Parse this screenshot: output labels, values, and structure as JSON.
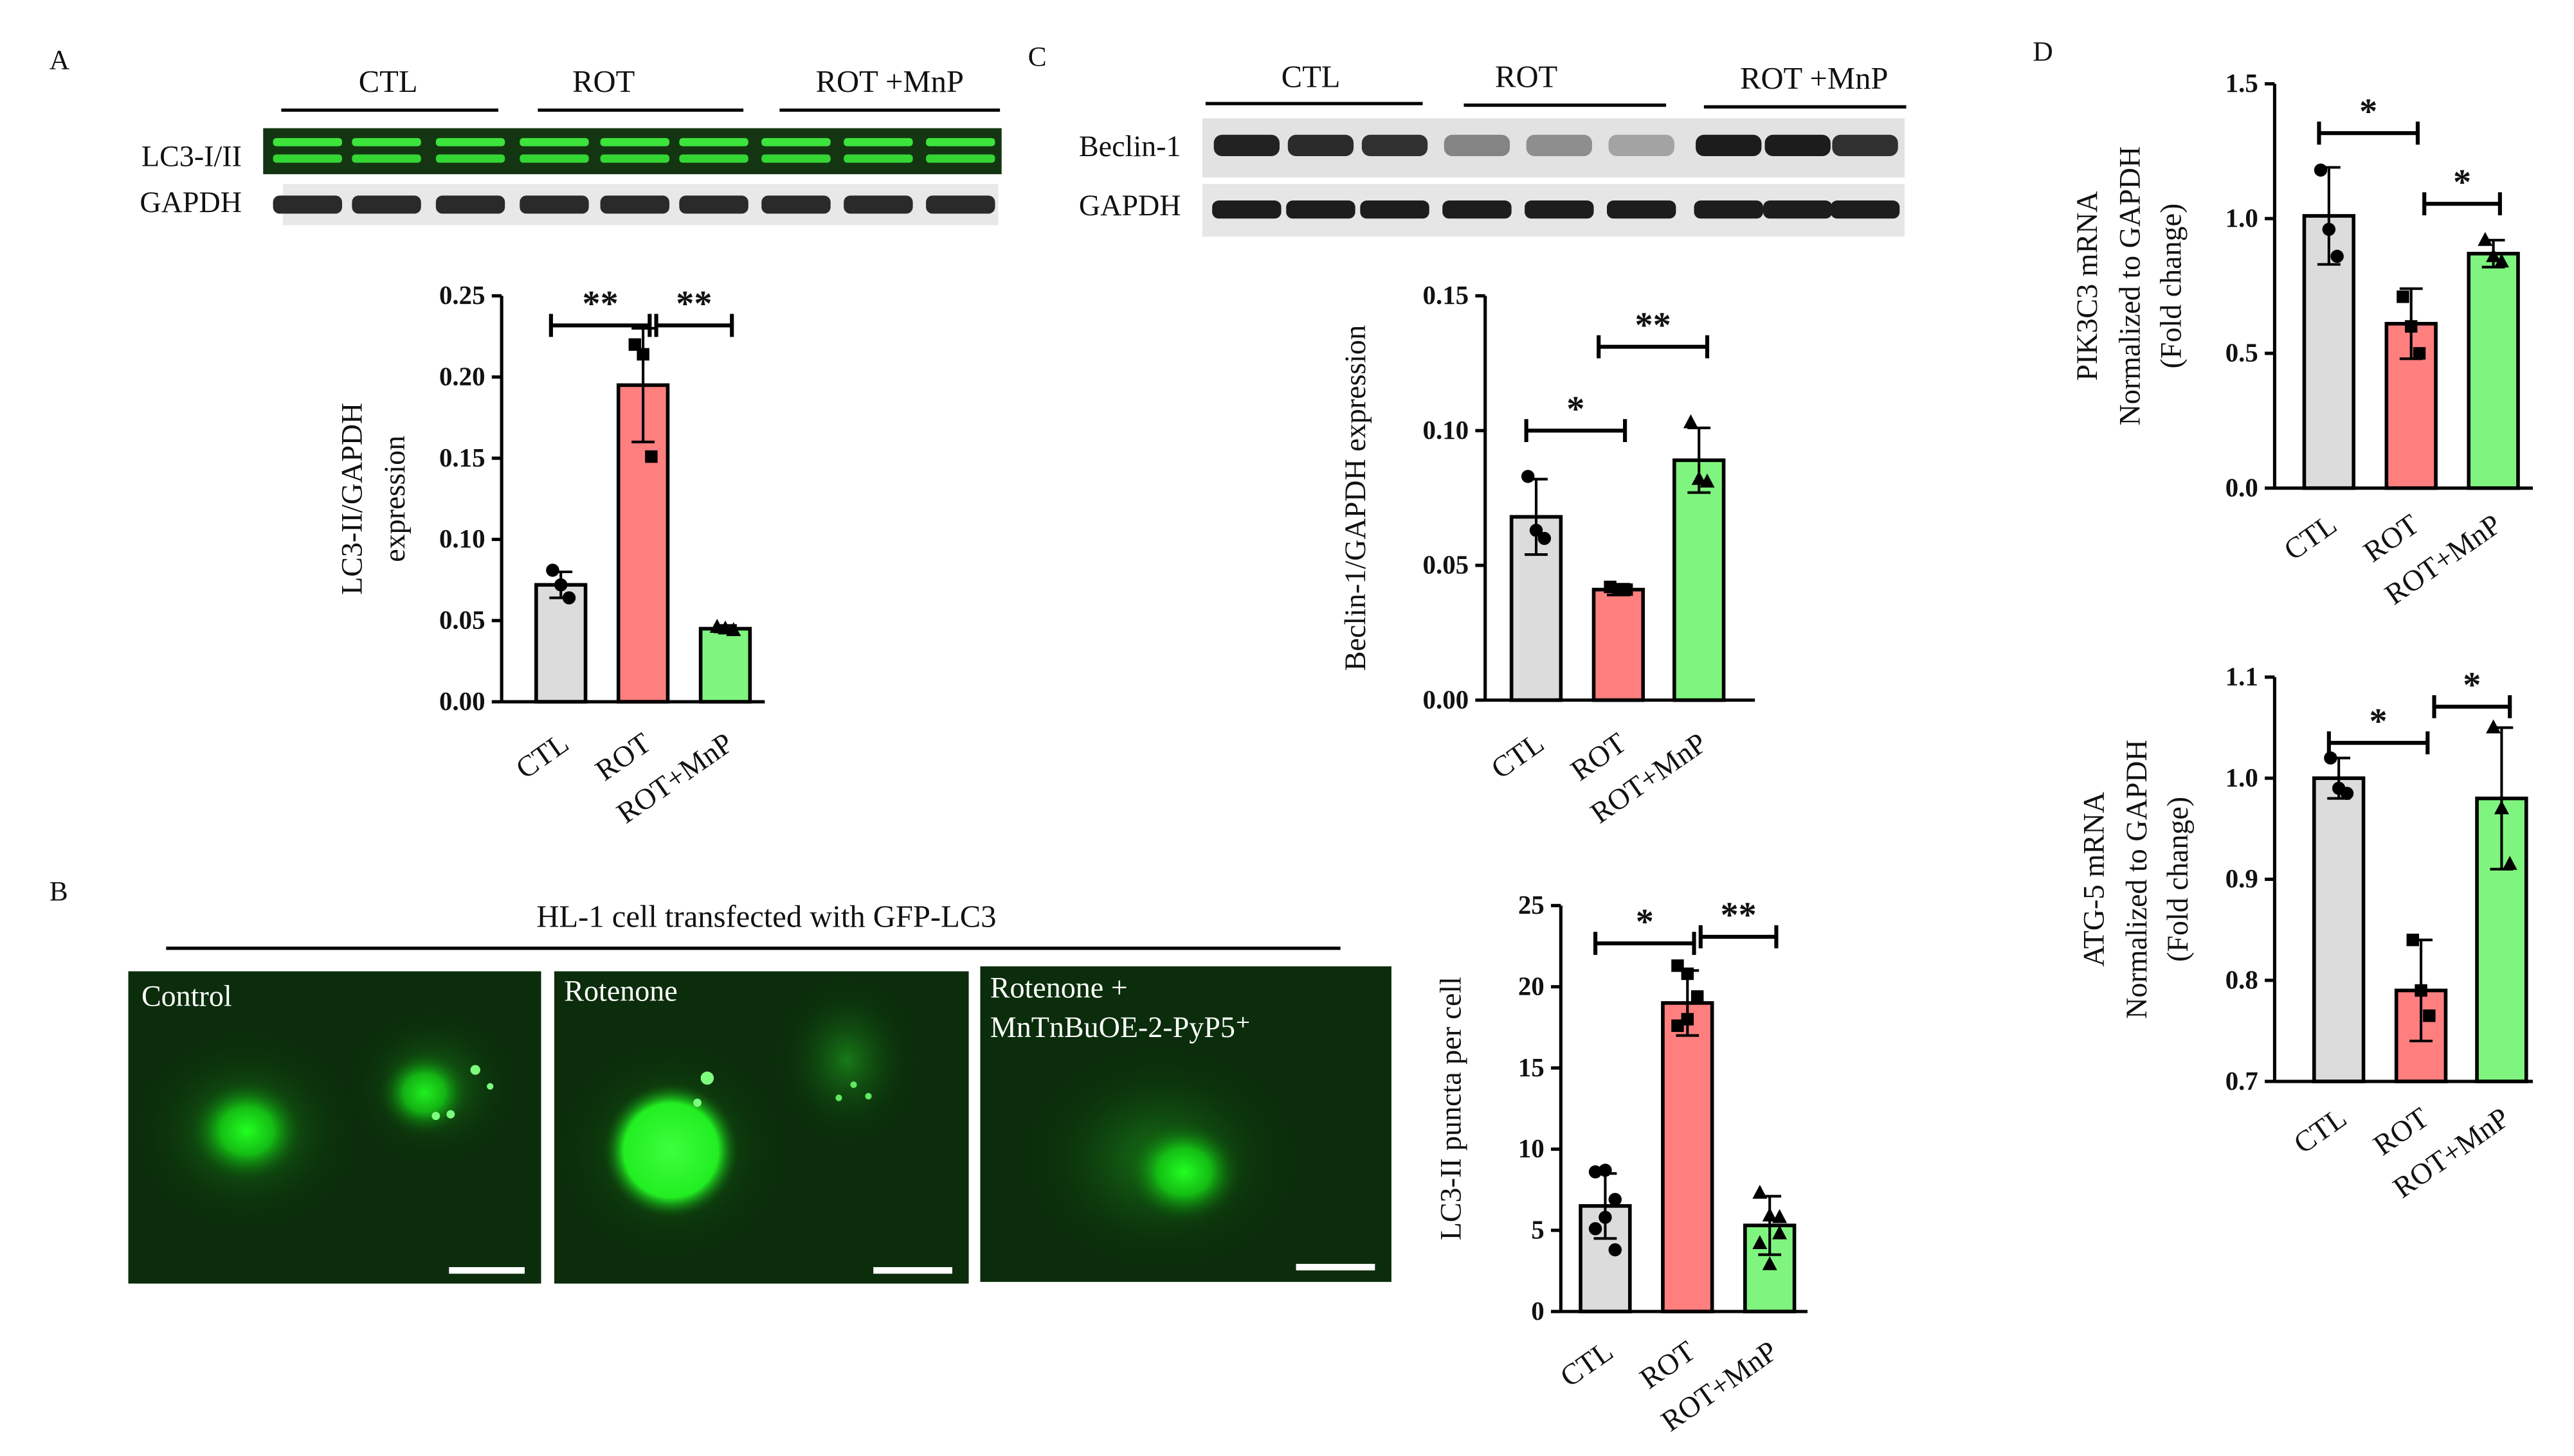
{
  "colors": {
    "CTL": "#dcdcdc",
    "ROT": "#ff7f7f",
    "ROT+MnP": "#7ff57f",
    "fluor": "#16ff16",
    "blot_bg": "#1a3a12"
  },
  "panel_A": {
    "letter": "A",
    "groups": [
      "CTL",
      "ROT",
      "ROT +MnP"
    ],
    "rows": [
      "LC3-I/II",
      "GAPDH"
    ]
  },
  "panel_B": {
    "letter": "B",
    "title": "HL-1 cell transfected with GFP-LC3",
    "image_labels": [
      "Control",
      "Rotenone",
      "Rotenone +",
      "MnTnBuOE-2-PyP5⁺"
    ]
  },
  "panel_C": {
    "letter": "C",
    "groups": [
      "CTL",
      "ROT",
      "ROT +MnP"
    ],
    "rows": [
      "Beclin-1",
      "GAPDH"
    ]
  },
  "panel_D": {
    "letter": "D"
  },
  "chart_data": [
    {
      "id": "A",
      "type": "bar",
      "categories": [
        "CTL",
        "ROT",
        "ROT+MnP"
      ],
      "values": [
        0.072,
        0.195,
        0.045
      ],
      "errors": [
        0.008,
        0.035,
        0.002
      ],
      "points": [
        [
          0.081,
          0.072,
          0.064
        ],
        [
          0.22,
          0.214,
          0.151
        ],
        [
          0.046,
          0.045,
          0.044
        ]
      ],
      "point_shape": [
        "circle",
        "square",
        "triangle"
      ],
      "ylabel": [
        "LC3-II/GAPDH",
        "expression"
      ],
      "ylim": [
        0,
        0.25
      ],
      "yticks": [
        "0.00",
        "0.05",
        "0.10",
        "0.15",
        "0.20",
        "0.25"
      ],
      "significance": [
        {
          "from": 0,
          "to": 1,
          "label": "**"
        },
        {
          "from": 1,
          "to": 2,
          "label": "**"
        }
      ]
    },
    {
      "id": "C",
      "type": "bar",
      "categories": [
        "CTL",
        "ROT",
        "ROT+MnP"
      ],
      "values": [
        0.068,
        0.041,
        0.089
      ],
      "errors": [
        0.014,
        0.002,
        0.012
      ],
      "points": [
        [
          0.083,
          0.063,
          0.06
        ],
        [
          0.042,
          0.041,
          0.041
        ],
        [
          0.103,
          0.082,
          0.081
        ]
      ],
      "point_shape": [
        "circle",
        "square",
        "triangle"
      ],
      "ylabel": [
        "Beclin-1/GAPDH expression"
      ],
      "ylim": [
        0,
        0.15
      ],
      "yticks": [
        "0.00",
        "0.05",
        "0.10",
        "0.15"
      ],
      "significance": [
        {
          "from": 0,
          "to": 1,
          "label": "*"
        },
        {
          "from": 0.6,
          "to": 2,
          "label": "**"
        }
      ]
    },
    {
      "id": "B",
      "type": "bar",
      "categories": [
        "CTL",
        "ROT",
        "ROT+MnP"
      ],
      "values": [
        6.5,
        19,
        5.3
      ],
      "errors": [
        2,
        2,
        1.8
      ],
      "points": [
        [
          8.6,
          8.7,
          6.9,
          5.1,
          5.8,
          3.8
        ],
        [
          21.3,
          20.8,
          19.3,
          17.6,
          18.0,
          19.4
        ],
        [
          7.3,
          5.9,
          4.8,
          4.2,
          2.9,
          5.8
        ]
      ],
      "point_shape": [
        "circle",
        "square",
        "triangle"
      ],
      "ylabel": [
        "LC3-II puncta per cell"
      ],
      "ylim": [
        0,
        25
      ],
      "yticks": [
        "0",
        "5",
        "10",
        "15",
        "20",
        "25"
      ],
      "significance": [
        {
          "from": 0,
          "to": 1,
          "label": "*"
        },
        {
          "from": 1,
          "to": 2,
          "label": "**"
        }
      ]
    },
    {
      "id": "D1",
      "type": "bar",
      "categories": [
        "CTL",
        "ROT",
        "ROT+MnP"
      ],
      "values": [
        1.01,
        0.61,
        0.87
      ],
      "errors": [
        0.18,
        0.13,
        0.05
      ],
      "points": [
        [
          1.18,
          0.96,
          0.86
        ],
        [
          0.71,
          0.6,
          0.5
        ],
        [
          0.92,
          0.86,
          0.84
        ]
      ],
      "point_shape": [
        "circle",
        "square",
        "triangle"
      ],
      "ylabel": [
        "PIK3C3 mRNA",
        "Normalized to GAPDH",
        "(Fold change)"
      ],
      "ylim": [
        0,
        1.5
      ],
      "yticks": [
        "0.0",
        "0.5",
        "1.0",
        "1.5"
      ],
      "significance": [
        {
          "from": 0,
          "to": 1,
          "label": "*"
        },
        {
          "from": 1,
          "to": 2,
          "label": "*"
        }
      ]
    },
    {
      "id": "D2",
      "type": "bar",
      "categories": [
        "CTL",
        "ROT",
        "ROT+MnP"
      ],
      "values": [
        1.0,
        0.79,
        0.98
      ],
      "errors": [
        0.02,
        0.05,
        0.07
      ],
      "points": [
        [
          1.02,
          0.99,
          0.985
        ],
        [
          0.84,
          0.79,
          0.765
        ],
        [
          1.05,
          0.97,
          0.915
        ]
      ],
      "point_shape": [
        "circle",
        "square",
        "triangle"
      ],
      "ylabel": [
        "ATG-5 mRNA",
        "Normalized to GAPDH",
        "(Fold change)"
      ],
      "ylim": [
        0.7,
        1.1
      ],
      "yticks": [
        "0.7",
        "0.8",
        "0.9",
        "1.0",
        "1.1"
      ],
      "significance": [
        {
          "from": 0,
          "to": 1,
          "label": "*"
        },
        {
          "from": 1,
          "to": 2,
          "label": "*"
        }
      ]
    }
  ]
}
